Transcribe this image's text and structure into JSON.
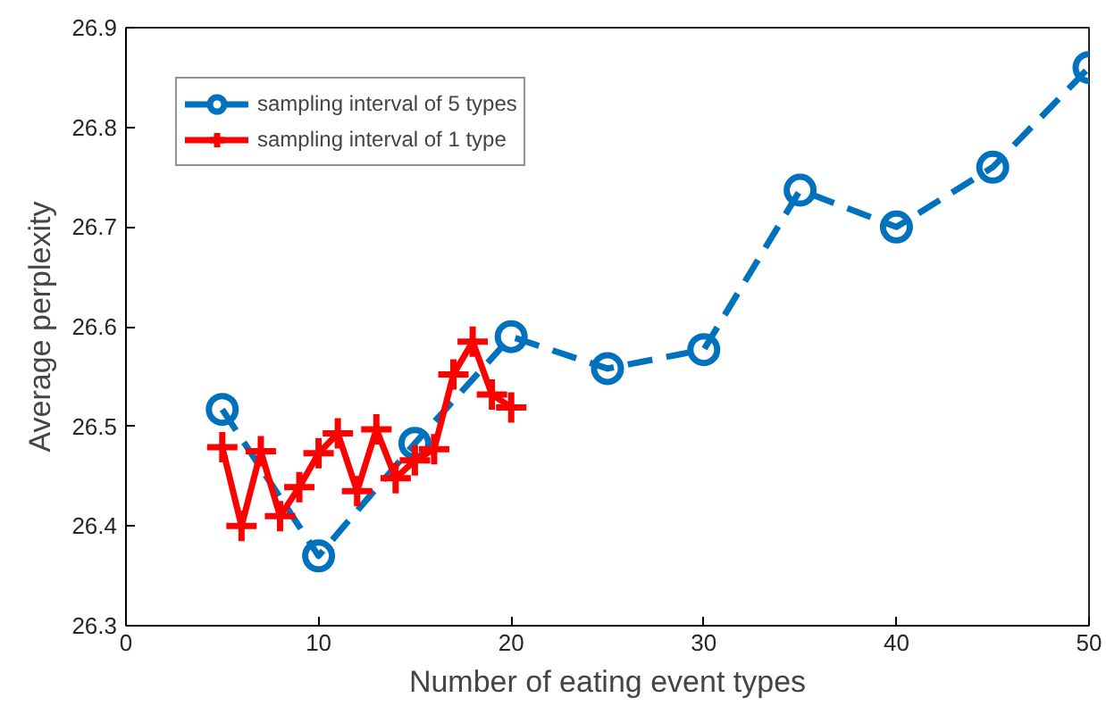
{
  "chart_data": {
    "type": "line",
    "xlabel": "Number of eating event types",
    "ylabel": "Average perplexity",
    "xlim": [
      0,
      50
    ],
    "xticks": [
      0,
      10,
      20,
      30,
      40,
      50
    ],
    "ylim": [
      26.3,
      26.9
    ],
    "yticks": [
      26.3,
      26.4,
      26.5,
      26.6,
      26.7,
      26.8,
      26.9
    ],
    "grid": false,
    "legend": "top left",
    "series": [
      {
        "name": "sampling interval of 5 types",
        "color": "#0072bd",
        "marker": "circle",
        "line_style": "dashed",
        "x": [
          5,
          10,
          15,
          20,
          25,
          30,
          35,
          40,
          45,
          50
        ],
        "values": [
          26.517,
          26.37,
          26.483,
          26.59,
          26.558,
          26.577,
          26.737,
          26.7,
          26.76,
          26.86
        ]
      },
      {
        "name": "sampling interval of 1 type",
        "color": "#ff0000",
        "marker": "cross",
        "line_style": "solid",
        "x": [
          5,
          6,
          7,
          8,
          9,
          10,
          11,
          12,
          13,
          14,
          15,
          16,
          17,
          18,
          19,
          20
        ],
        "values": [
          26.479,
          26.4,
          26.475,
          26.41,
          26.439,
          26.473,
          26.493,
          26.435,
          26.497,
          26.448,
          26.466,
          26.477,
          26.552,
          26.585,
          26.532,
          26.519
        ]
      }
    ]
  }
}
